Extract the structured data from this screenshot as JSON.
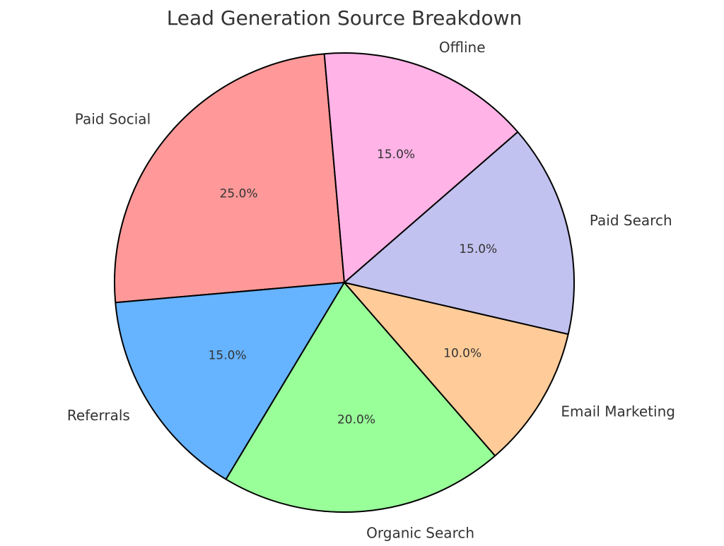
{
  "chart_data": {
    "type": "pie",
    "title": "Lead Generation Source Breakdown",
    "start_angle_deg": 95,
    "direction": "counterclockwise",
    "slices": [
      {
        "label": "Paid Social",
        "value": 25,
        "pct_label": "25.0%",
        "color": "#ff9999"
      },
      {
        "label": "Referrals",
        "value": 15,
        "pct_label": "15.0%",
        "color": "#66b3ff"
      },
      {
        "label": "Organic Search",
        "value": 20,
        "pct_label": "20.0%",
        "color": "#99ff99"
      },
      {
        "label": "Email Marketing",
        "value": 10,
        "pct_label": "10.0%",
        "color": "#ffcc99"
      },
      {
        "label": "Paid Search",
        "value": 15,
        "pct_label": "15.0%",
        "color": "#c2c2f0"
      },
      {
        "label": "Offline",
        "value": 15,
        "pct_label": "15.0%",
        "color": "#ffb3e6"
      }
    ]
  }
}
